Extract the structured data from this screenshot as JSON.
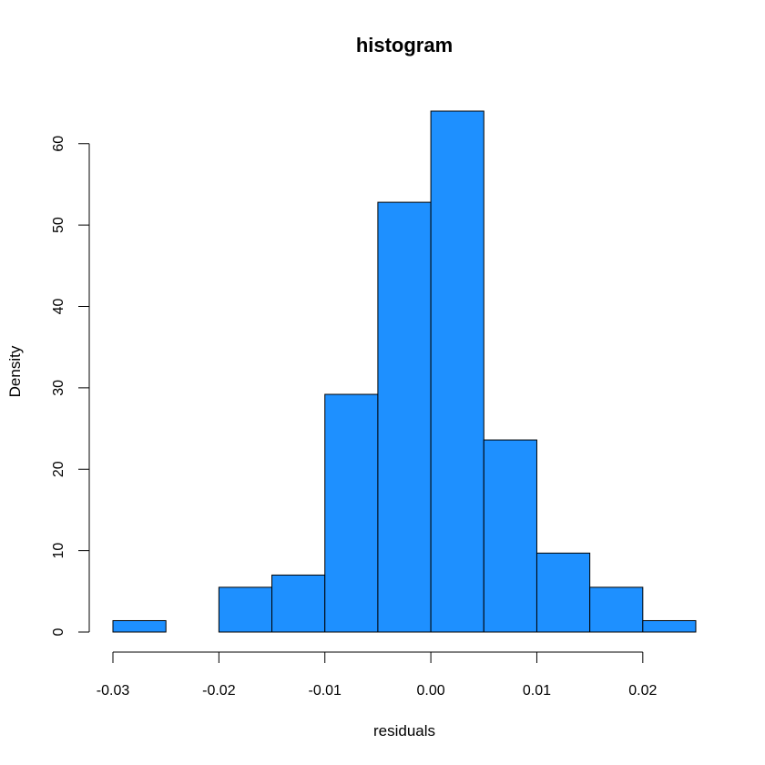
{
  "chart_data": {
    "type": "bar",
    "title": "histogram",
    "xlabel": "residuals",
    "ylabel": "Density",
    "bin_edges": [
      -0.03,
      -0.025,
      -0.02,
      -0.015,
      -0.01,
      -0.005,
      0.0,
      0.005,
      0.01,
      0.015,
      0.02,
      0.025
    ],
    "values": [
      1.4,
      0.0,
      5.5,
      7.0,
      29.2,
      52.8,
      64.0,
      23.6,
      9.7,
      5.5,
      1.4
    ],
    "xlim": [
      -0.03,
      0.025
    ],
    "ylim": [
      0,
      64
    ],
    "x_ticks": [
      -0.03,
      -0.02,
      -0.01,
      0.0,
      0.01,
      0.02
    ],
    "x_tick_labels": [
      "-0.03",
      "-0.02",
      "-0.01",
      "0.00",
      "0.01",
      "0.02"
    ],
    "y_ticks": [
      0,
      10,
      20,
      30,
      40,
      50,
      60
    ],
    "y_tick_labels": [
      "0",
      "10",
      "20",
      "30",
      "40",
      "50",
      "60"
    ],
    "bar_color": "#1E90FF",
    "grid": false
  }
}
